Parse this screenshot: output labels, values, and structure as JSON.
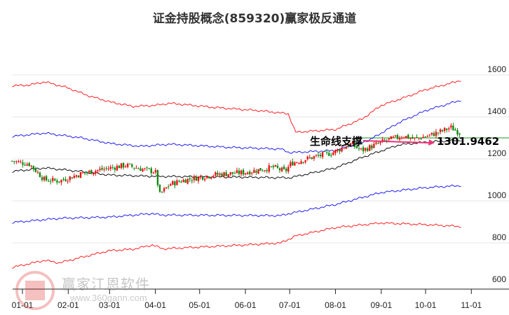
{
  "chart_data": {
    "type": "line",
    "title": "证金持股概念(859320)赢家极反通道",
    "ylim": [
      600,
      1600
    ],
    "yticks": [
      1600,
      1400,
      1200,
      1000,
      800,
      600
    ],
    "xticks": [
      {
        "label": "01-01",
        "day": 0
      },
      {
        "label": "02-01",
        "day": 31
      },
      {
        "label": "03-01",
        "day": 59
      },
      {
        "label": "04-01",
        "day": 90
      },
      {
        "label": "05-01",
        "day": 120
      },
      {
        "label": "06-01",
        "day": 151
      },
      {
        "label": "07-01",
        "day": 181
      },
      {
        "label": "08-01",
        "day": 212
      },
      {
        "label": "09-01",
        "day": 243
      },
      {
        "label": "10-01",
        "day": 273
      },
      {
        "label": "11-01",
        "day": 304
      }
    ],
    "xlim_days": [
      -7,
      325
    ],
    "series": [
      {
        "name": "upper-red",
        "color": "#ff2020",
        "points": [
          [
            -7,
            1548
          ],
          [
            5,
            1552
          ],
          [
            15,
            1567
          ],
          [
            30,
            1540
          ],
          [
            45,
            1500
          ],
          [
            60,
            1470
          ],
          [
            75,
            1450
          ],
          [
            90,
            1455
          ],
          [
            100,
            1465
          ],
          [
            130,
            1445
          ],
          [
            160,
            1430
          ],
          [
            180,
            1415
          ],
          [
            185,
            1327
          ],
          [
            212,
            1340
          ],
          [
            230,
            1390
          ],
          [
            243,
            1455
          ],
          [
            260,
            1495
          ],
          [
            273,
            1530
          ],
          [
            290,
            1560
          ],
          [
            297,
            1575
          ]
        ]
      },
      {
        "name": "upper-blue",
        "color": "#2020ee",
        "points": [
          [
            -7,
            1307
          ],
          [
            15,
            1323
          ],
          [
            40,
            1300
          ],
          [
            60,
            1273
          ],
          [
            80,
            1260
          ],
          [
            90,
            1265
          ],
          [
            100,
            1270
          ],
          [
            140,
            1255
          ],
          [
            175,
            1247
          ],
          [
            181,
            1230
          ],
          [
            212,
            1240
          ],
          [
            235,
            1290
          ],
          [
            255,
            1373
          ],
          [
            273,
            1430
          ],
          [
            297,
            1480
          ]
        ]
      },
      {
        "name": "middle-black",
        "color": "#111111",
        "points": [
          [
            -7,
            1140
          ],
          [
            15,
            1157
          ],
          [
            40,
            1140
          ],
          [
            59,
            1123
          ],
          [
            90,
            1117
          ],
          [
            150,
            1113
          ],
          [
            181,
            1110
          ],
          [
            212,
            1157
          ],
          [
            230,
            1207
          ],
          [
            255,
            1267
          ],
          [
            273,
            1280
          ],
          [
            297,
            1290
          ]
        ]
      },
      {
        "name": "lower-blue",
        "color": "#2020ee",
        "points": [
          [
            -7,
            897
          ],
          [
            25,
            917
          ],
          [
            59,
            923
          ],
          [
            88,
            940
          ],
          [
            93,
            933
          ],
          [
            175,
            930
          ],
          [
            181,
            940
          ],
          [
            212,
            983
          ],
          [
            243,
            1040
          ],
          [
            273,
            1063
          ],
          [
            297,
            1073
          ]
        ]
      },
      {
        "name": "lower-red",
        "color": "#ff2020",
        "points": [
          [
            -7,
            683
          ],
          [
            15,
            717
          ],
          [
            25,
            705
          ],
          [
            45,
            740
          ],
          [
            59,
            763
          ],
          [
            75,
            770
          ],
          [
            88,
            790
          ],
          [
            95,
            772
          ],
          [
            150,
            790
          ],
          [
            175,
            800
          ],
          [
            185,
            833
          ],
          [
            212,
            873
          ],
          [
            243,
            895
          ],
          [
            273,
            887
          ],
          [
            297,
            878
          ]
        ]
      }
    ],
    "price_path": [
      [
        -7,
        1190
      ],
      [
        5,
        1175
      ],
      [
        15,
        1100
      ],
      [
        25,
        1095
      ],
      [
        40,
        1130
      ],
      [
        50,
        1145
      ],
      [
        70,
        1170
      ],
      [
        85,
        1145
      ],
      [
        90,
        1140
      ],
      [
        93,
        1030
      ],
      [
        100,
        1080
      ],
      [
        110,
        1100
      ],
      [
        130,
        1125
      ],
      [
        150,
        1135
      ],
      [
        170,
        1160
      ],
      [
        178,
        1140
      ],
      [
        182,
        1180
      ],
      [
        195,
        1205
      ],
      [
        210,
        1230
      ],
      [
        222,
        1270
      ],
      [
        230,
        1240
      ],
      [
        245,
        1285
      ],
      [
        258,
        1310
      ],
      [
        265,
        1295
      ],
      [
        275,
        1310
      ],
      [
        285,
        1335
      ],
      [
        290,
        1350
      ],
      [
        297,
        1320
      ]
    ],
    "support_line": 1300,
    "annotation": {
      "label": "生命线支撑",
      "value": "1301.9462"
    }
  },
  "watermark": {
    "brand": "赢家江恩软件",
    "url": "www.360gann.com",
    "seal": "江恩赢家"
  }
}
